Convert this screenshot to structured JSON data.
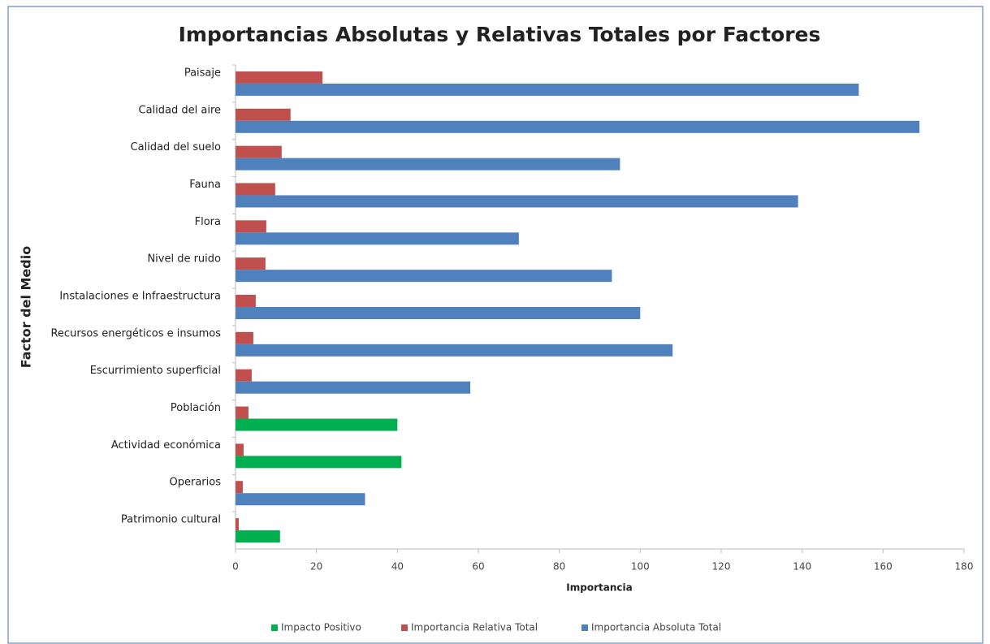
{
  "chart_data": {
    "type": "bar",
    "orientation": "horizontal",
    "title": "Importancias Absolutas y Relativas Totales por Factores",
    "x_label": "Importancia",
    "y_label": "Factor del Medio",
    "categories": [
      "Paisaje",
      "Calidad del aire",
      "Calidad del suelo",
      "Fauna",
      "Flora",
      "Nivel de ruido",
      "Instalaciones e Infraestructura",
      "Recursos energéticos e insumos",
      "Escurrimiento superficial",
      "Población",
      "Actividad económica",
      "Operarios",
      "Patrimonio cultural"
    ],
    "series": [
      {
        "name": "Impacto Positivo",
        "color": "#00b050",
        "values": [
          null,
          null,
          null,
          null,
          null,
          null,
          null,
          null,
          null,
          40,
          41,
          null,
          11
        ]
      },
      {
        "name": "Importancia Relativa Total",
        "color": "#c0504d",
        "values": [
          21.5,
          13.6,
          11.4,
          9.8,
          7.6,
          7.4,
          5,
          4.4,
          4,
          3.2,
          2,
          1.8,
          0.8
        ]
      },
      {
        "name": "Importancia Absoluta Total",
        "color": "#4f81bd",
        "values": [
          154,
          169,
          95,
          139,
          70,
          93,
          100,
          108,
          58,
          null,
          null,
          32,
          null
        ]
      }
    ],
    "xlim": [
      0,
      180
    ],
    "xticks": [
      0,
      20,
      40,
      60,
      80,
      100,
      120,
      140,
      160,
      180
    ],
    "legend": "bottom"
  }
}
